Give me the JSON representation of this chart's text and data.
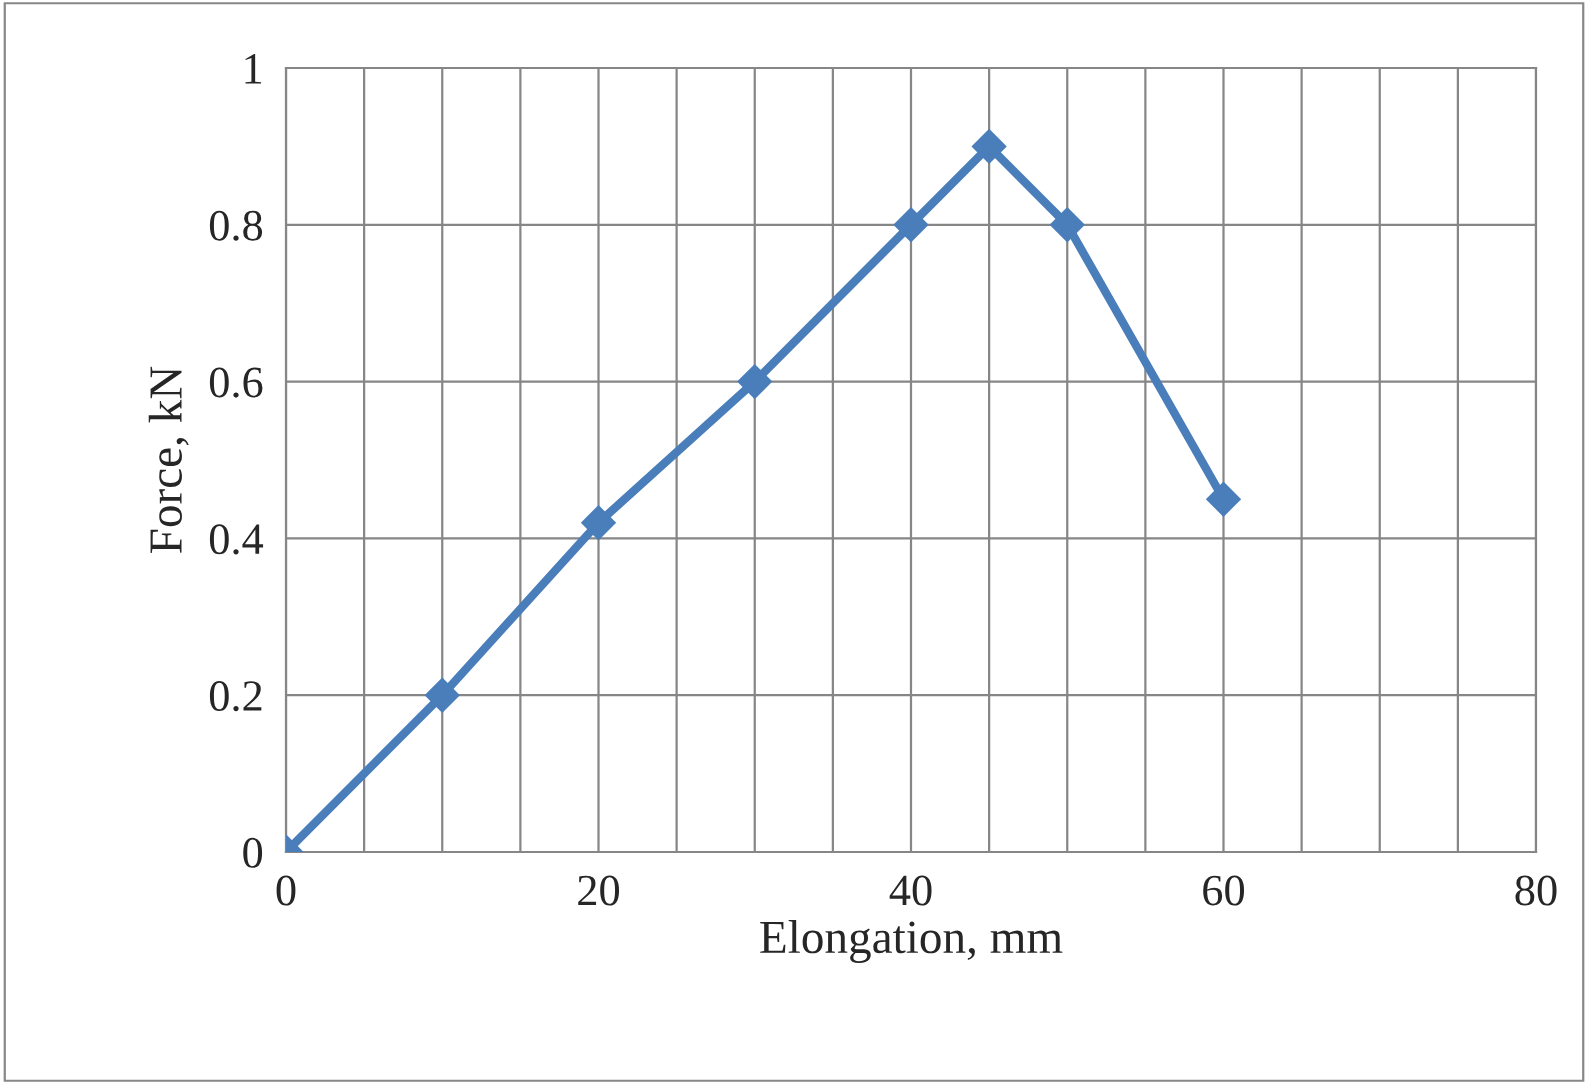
{
  "chart_data": {
    "type": "line",
    "xlabel": "Elongation, mm",
    "ylabel": "Force, kN",
    "x": [
      0,
      10,
      20,
      30,
      40,
      45,
      50,
      60
    ],
    "series": [
      {
        "color": "#4a7ebb",
        "values": [
          0,
          0.2,
          0.42,
          0.6,
          0.8,
          0.9,
          0.8,
          0.45
        ]
      }
    ],
    "xlim": [
      0,
      80
    ],
    "ylim": [
      0,
      1
    ],
    "xticks": [
      0,
      {
        "value": 5,
        "label": null
      },
      {
        "value": 10,
        "label": null
      },
      {
        "value": 15,
        "label": null
      },
      20,
      {
        "value": 25,
        "label": null
      },
      {
        "value": 30,
        "label": null
      },
      {
        "value": 35,
        "label": null
      },
      40,
      {
        "value": 45,
        "label": null
      },
      {
        "value": 50,
        "label": null
      },
      {
        "value": 55,
        "label": null
      },
      60,
      {
        "value": 65,
        "label": null
      },
      {
        "value": 70,
        "label": null
      },
      {
        "value": 75,
        "label": null
      },
      80
    ],
    "yticks": [
      0,
      0.2,
      0.4,
      0.6,
      0.8,
      1
    ],
    "grid": true,
    "marker": "diamond",
    "line_style": "solid"
  }
}
